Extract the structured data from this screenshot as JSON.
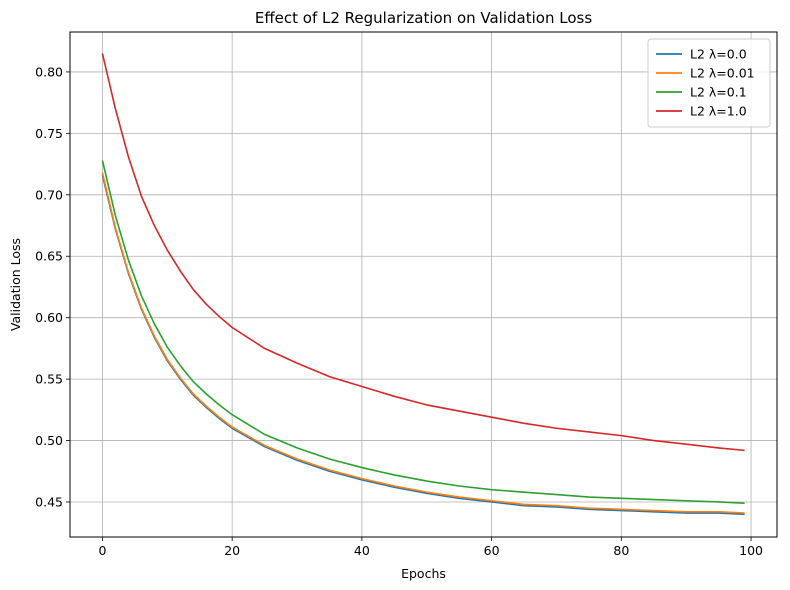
{
  "chart_data": {
    "type": "line",
    "title": "Effect of L2 Regularization on Validation Loss",
    "xlabel": "Epochs",
    "ylabel": "Validation Loss",
    "xlim": [
      -5,
      104
    ],
    "ylim": [
      0.4215,
      0.8325
    ],
    "xticks": [
      0,
      20,
      40,
      60,
      80,
      100
    ],
    "yticks": [
      0.45,
      0.5,
      0.55,
      0.6,
      0.65,
      0.7,
      0.75,
      0.8
    ],
    "xtick_labels": [
      "0",
      "20",
      "40",
      "60",
      "80",
      "100"
    ],
    "ytick_labels": [
      "0.45",
      "0.50",
      "0.55",
      "0.60",
      "0.65",
      "0.70",
      "0.75",
      "0.80"
    ],
    "grid": true,
    "legend_position": "top-right",
    "series": [
      {
        "name": "L2 λ=0.0",
        "color": "#1f77b4",
        "x": [
          0,
          2,
          4,
          6,
          8,
          10,
          12,
          14,
          16,
          18,
          20,
          25,
          30,
          35,
          40,
          45,
          50,
          55,
          60,
          65,
          70,
          75,
          80,
          85,
          90,
          95,
          99
        ],
        "y": [
          0.716,
          0.672,
          0.636,
          0.607,
          0.584,
          0.565,
          0.55,
          0.537,
          0.527,
          0.518,
          0.51,
          0.495,
          0.484,
          0.475,
          0.468,
          0.462,
          0.457,
          0.453,
          0.45,
          0.447,
          0.446,
          0.444,
          0.443,
          0.442,
          0.441,
          0.441,
          0.44
        ]
      },
      {
        "name": "L2 λ=0.01",
        "color": "#ff7f0e",
        "x": [
          0,
          2,
          4,
          6,
          8,
          10,
          12,
          14,
          16,
          18,
          20,
          25,
          30,
          35,
          40,
          45,
          50,
          55,
          60,
          65,
          70,
          75,
          80,
          85,
          90,
          95,
          99
        ],
        "y": [
          0.718,
          0.673,
          0.637,
          0.608,
          0.585,
          0.566,
          0.551,
          0.538,
          0.528,
          0.519,
          0.511,
          0.496,
          0.485,
          0.476,
          0.469,
          0.463,
          0.458,
          0.454,
          0.451,
          0.448,
          0.447,
          0.445,
          0.444,
          0.443,
          0.442,
          0.442,
          0.441
        ]
      },
      {
        "name": "L2 λ=0.1",
        "color": "#2ca02c",
        "x": [
          0,
          2,
          4,
          6,
          8,
          10,
          12,
          14,
          16,
          18,
          20,
          25,
          30,
          35,
          40,
          45,
          50,
          55,
          60,
          65,
          70,
          75,
          80,
          85,
          90,
          95,
          99
        ],
        "y": [
          0.728,
          0.683,
          0.647,
          0.618,
          0.595,
          0.576,
          0.561,
          0.548,
          0.538,
          0.529,
          0.521,
          0.505,
          0.494,
          0.485,
          0.478,
          0.472,
          0.467,
          0.463,
          0.46,
          0.458,
          0.456,
          0.454,
          0.453,
          0.452,
          0.451,
          0.45,
          0.449
        ]
      },
      {
        "name": "L2 λ=1.0",
        "color": "#d62728",
        "x": [
          0,
          2,
          4,
          6,
          8,
          10,
          12,
          14,
          16,
          18,
          20,
          25,
          30,
          35,
          40,
          45,
          50,
          55,
          60,
          65,
          70,
          75,
          80,
          85,
          90,
          95,
          99
        ],
        "y": [
          0.815,
          0.77,
          0.731,
          0.699,
          0.675,
          0.655,
          0.638,
          0.623,
          0.611,
          0.601,
          0.592,
          0.575,
          0.563,
          0.552,
          0.544,
          0.536,
          0.529,
          0.524,
          0.519,
          0.514,
          0.51,
          0.507,
          0.504,
          0.5,
          0.497,
          0.494,
          0.492
        ]
      }
    ]
  }
}
